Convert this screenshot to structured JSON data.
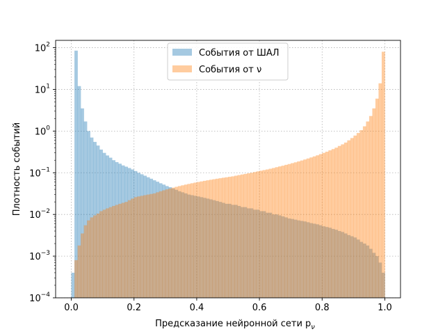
{
  "chart_data": {
    "type": "histogram",
    "xlabel": "Предсказание нейронной сети p_ν",
    "ylabel": "Плотность событий",
    "xlim": [
      -0.05,
      1.05
    ],
    "ylim": [
      0.0001,
      150
    ],
    "yscale": "log",
    "grid": true,
    "legend_position": "upper-center",
    "x_ticks": [
      "0.0",
      "0.2",
      "0.4",
      "0.6",
      "0.8",
      "1.0"
    ],
    "y_ticks": [
      "10^-4",
      "10^-3",
      "10^-2",
      "10^-1",
      "10^0",
      "10^1",
      "10^2"
    ],
    "bin_width": 0.01,
    "series": [
      {
        "name": "События от ШАЛ",
        "color": "#1f77b4",
        "alpha": 0.4,
        "values": [
          0.0004,
          85,
          12,
          3.5,
          1.7,
          1.0,
          0.7,
          0.55,
          0.45,
          0.36,
          0.3,
          0.26,
          0.23,
          0.2,
          0.18,
          0.165,
          0.15,
          0.14,
          0.13,
          0.12,
          0.11,
          0.1,
          0.092,
          0.085,
          0.078,
          0.072,
          0.066,
          0.061,
          0.056,
          0.052,
          0.048,
          0.045,
          0.042,
          0.039,
          0.036,
          0.034,
          0.032,
          0.03,
          0.029,
          0.028,
          0.027,
          0.026,
          0.025,
          0.024,
          0.023,
          0.022,
          0.021,
          0.02,
          0.019,
          0.018,
          0.018,
          0.017,
          0.017,
          0.016,
          0.015,
          0.015,
          0.014,
          0.014,
          0.013,
          0.013,
          0.012,
          0.012,
          0.011,
          0.011,
          0.01,
          0.01,
          0.0095,
          0.009,
          0.0085,
          0.008,
          0.0078,
          0.0075,
          0.0072,
          0.007,
          0.0068,
          0.0065,
          0.0062,
          0.006,
          0.0058,
          0.0055,
          0.0052,
          0.005,
          0.0048,
          0.0045,
          0.0043,
          0.004,
          0.0038,
          0.0035,
          0.0032,
          0.003,
          0.0028,
          0.0025,
          0.0022,
          0.002,
          0.0018,
          0.0015,
          0.0012,
          0.001,
          0.0007,
          0.0004
        ]
      },
      {
        "name": "События от ν",
        "color": "#ff7f0e",
        "alpha": 0.4,
        "values": [
          0.0001,
          0.0008,
          0.0018,
          0.0035,
          0.0055,
          0.0072,
          0.0085,
          0.0095,
          0.0105,
          0.012,
          0.013,
          0.014,
          0.015,
          0.016,
          0.017,
          0.018,
          0.019,
          0.02,
          0.022,
          0.024,
          0.026,
          0.027,
          0.028,
          0.029,
          0.03,
          0.031,
          0.032,
          0.034,
          0.036,
          0.038,
          0.04,
          0.042,
          0.044,
          0.046,
          0.048,
          0.05,
          0.052,
          0.054,
          0.056,
          0.058,
          0.06,
          0.062,
          0.064,
          0.066,
          0.068,
          0.07,
          0.072,
          0.074,
          0.076,
          0.078,
          0.08,
          0.082,
          0.085,
          0.088,
          0.091,
          0.094,
          0.097,
          0.1,
          0.104,
          0.108,
          0.112,
          0.116,
          0.12,
          0.125,
          0.13,
          0.136,
          0.142,
          0.148,
          0.155,
          0.162,
          0.17,
          0.178,
          0.187,
          0.197,
          0.208,
          0.22,
          0.233,
          0.247,
          0.262,
          0.28,
          0.3,
          0.32,
          0.345,
          0.37,
          0.4,
          0.44,
          0.48,
          0.53,
          0.6,
          0.68,
          0.78,
          0.9,
          1.05,
          1.3,
          1.7,
          2.3,
          3.5,
          6,
          14,
          80
        ]
      }
    ]
  }
}
